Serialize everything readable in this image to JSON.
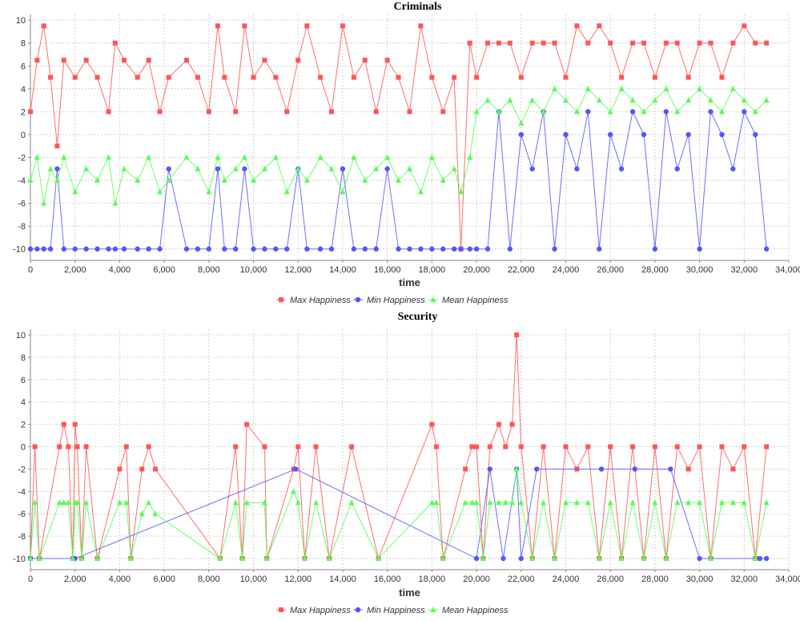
{
  "chart_data": [
    {
      "type": "line",
      "title": "Criminals",
      "xlabel": "time",
      "ylabel": "",
      "xlim": [
        0,
        34000
      ],
      "ylim": [
        -11,
        10.5
      ],
      "x_ticks": [
        "0",
        "2,000",
        "4,000",
        "6,000",
        "8,000",
        "10,000",
        "12,000",
        "14,000",
        "16,000",
        "18,000",
        "20,000",
        "22,000",
        "24,000",
        "26,000",
        "28,000",
        "30,000",
        "32,000",
        "34,000"
      ],
      "y_ticks": [
        "10",
        "8",
        "6",
        "4",
        "2",
        "0",
        "-2",
        "-4",
        "-6",
        "-8",
        "-10"
      ],
      "x_tick_values": [
        0,
        2000,
        4000,
        6000,
        8000,
        10000,
        12000,
        14000,
        16000,
        18000,
        20000,
        22000,
        24000,
        26000,
        28000,
        30000,
        32000,
        34000
      ],
      "y_tick_values": [
        10,
        8,
        6,
        4,
        2,
        0,
        -2,
        -4,
        -6,
        -8,
        -10
      ],
      "grid": true,
      "legend_position": "bottom-center",
      "series": [
        {
          "name": "Max Happiness",
          "color": "#ff5555",
          "marker": "square",
          "x": [
            0,
            300,
            600,
            900,
            1200,
            1500,
            2000,
            2500,
            3000,
            3500,
            3800,
            4200,
            4800,
            5300,
            5800,
            6200,
            7000,
            7500,
            8000,
            8400,
            8700,
            9200,
            9600,
            10000,
            10500,
            11000,
            11500,
            12000,
            12400,
            13000,
            13500,
            14000,
            14500,
            15000,
            15500,
            16000,
            16500,
            17000,
            17500,
            18000,
            18500,
            19000,
            19300,
            19700,
            20000,
            20500,
            21000,
            21500,
            22000,
            22500,
            23000,
            23500,
            24000,
            24500,
            25000,
            25500,
            26000,
            26500,
            27000,
            27500,
            28000,
            28500,
            29000,
            29500,
            30000,
            30500,
            31000,
            31500,
            32000,
            32500,
            33000
          ],
          "y": [
            2,
            6.5,
            9.5,
            5,
            -1,
            6.5,
            5,
            6.5,
            5,
            2,
            8,
            6.5,
            5,
            6.5,
            2,
            5,
            6.5,
            5,
            2,
            9.5,
            5,
            2,
            9.5,
            5,
            6.5,
            5,
            2,
            6.5,
            9.5,
            5,
            2,
            9.5,
            5,
            6.5,
            2,
            6.5,
            5,
            2,
            9.5,
            5,
            2,
            5,
            -10,
            8,
            5,
            8,
            8,
            8,
            5,
            8,
            8,
            8,
            5,
            9.5,
            8,
            9.5,
            8,
            5,
            8,
            8,
            5,
            8,
            8,
            5,
            8,
            8,
            5,
            8,
            9.5,
            8,
            8
          ]
        },
        {
          "name": "Min Happiness",
          "color": "#5555ff",
          "marker": "circle",
          "x": [
            0,
            300,
            600,
            900,
            1200,
            1500,
            2000,
            2500,
            3000,
            3500,
            3800,
            4200,
            4800,
            5300,
            5800,
            6200,
            7000,
            7500,
            8000,
            8400,
            8700,
            9200,
            9600,
            10000,
            10500,
            11000,
            11500,
            12000,
            12400,
            13000,
            13500,
            14000,
            14500,
            15000,
            15500,
            16000,
            16500,
            17000,
            17500,
            18000,
            18500,
            19000,
            19300,
            19700,
            20000,
            20500,
            21000,
            21500,
            22000,
            22500,
            23000,
            23500,
            24000,
            24500,
            25000,
            25500,
            26000,
            26500,
            27000,
            27500,
            28000,
            28500,
            29000,
            29500,
            30000,
            30500,
            31000,
            31500,
            32000,
            32500,
            33000
          ],
          "y": [
            -10,
            -10,
            -10,
            -10,
            -3,
            -10,
            -10,
            -10,
            -10,
            -10,
            -10,
            -10,
            -10,
            -10,
            -10,
            -3,
            -10,
            -10,
            -10,
            -3,
            -10,
            -10,
            -3,
            -10,
            -10,
            -10,
            -10,
            -3,
            -10,
            -10,
            -10,
            -3,
            -10,
            -10,
            -10,
            -3,
            -10,
            -10,
            -10,
            -10,
            -10,
            -10,
            -10,
            -10,
            -10,
            -10,
            2,
            -10,
            0,
            -3,
            2,
            -10,
            0,
            -3,
            2,
            -10,
            0,
            -3,
            2,
            0,
            -10,
            2,
            -3,
            0,
            -10,
            2,
            0,
            -3,
            2,
            0,
            -10
          ]
        },
        {
          "name": "Mean Happiness",
          "color": "#55ff55",
          "marker": "triangle",
          "x": [
            0,
            300,
            600,
            900,
            1200,
            1500,
            2000,
            2500,
            3000,
            3500,
            3800,
            4200,
            4800,
            5300,
            5800,
            6200,
            7000,
            7500,
            8000,
            8400,
            8700,
            9200,
            9600,
            10000,
            10500,
            11000,
            11500,
            12000,
            12400,
            13000,
            13500,
            14000,
            14500,
            15000,
            15500,
            16000,
            16500,
            17000,
            17500,
            18000,
            18500,
            19000,
            19300,
            19700,
            20000,
            20500,
            21000,
            21500,
            22000,
            22500,
            23000,
            23500,
            24000,
            24500,
            25000,
            25500,
            26000,
            26500,
            27000,
            27500,
            28000,
            28500,
            29000,
            29500,
            30000,
            30500,
            31000,
            31500,
            32000,
            32500,
            33000
          ],
          "y": [
            -4,
            -2,
            -6,
            -3,
            -4,
            -2,
            -5,
            -3,
            -4,
            -2,
            -6,
            -3,
            -4,
            -2,
            -5,
            -4,
            -2,
            -3,
            -5,
            -2,
            -4,
            -3,
            -2,
            -4,
            -3,
            -2,
            -5,
            -3,
            -4,
            -2,
            -3,
            -5,
            -2,
            -4,
            -3,
            -2,
            -4,
            -3,
            -5,
            -2,
            -4,
            -3,
            -5,
            -2,
            2,
            3,
            2,
            3,
            1,
            3,
            2,
            4,
            3,
            2,
            4,
            3,
            2,
            4,
            3,
            2,
            3,
            4,
            2,
            3,
            4,
            3,
            2,
            4,
            3,
            2,
            3
          ]
        }
      ]
    },
    {
      "type": "line",
      "title": "Security",
      "xlabel": "time",
      "ylabel": "",
      "xlim": [
        0,
        34000
      ],
      "ylim": [
        -11,
        10.5
      ],
      "x_ticks": [
        "0",
        "2,000",
        "4,000",
        "6,000",
        "8,000",
        "10,000",
        "12,000",
        "14,000",
        "16,000",
        "18,000",
        "20,000",
        "22,000",
        "24,000",
        "26,000",
        "28,000",
        "30,000",
        "32,000",
        "34,000"
      ],
      "y_ticks": [
        "10",
        "8",
        "6",
        "4",
        "2",
        "0",
        "-2",
        "-4",
        "-6",
        "-8",
        "-10"
      ],
      "x_tick_values": [
        0,
        2000,
        4000,
        6000,
        8000,
        10000,
        12000,
        14000,
        16000,
        18000,
        20000,
        22000,
        24000,
        26000,
        28000,
        30000,
        32000,
        34000
      ],
      "y_tick_values": [
        10,
        8,
        6,
        4,
        2,
        0,
        -2,
        -4,
        -6,
        -8,
        -10
      ],
      "grid": true,
      "legend_position": "bottom-center",
      "series": [
        {
          "name": "Max Happiness",
          "color": "#ff5555",
          "marker": "square",
          "x": [
            0,
            200,
            400,
            1300,
            1500,
            1700,
            1900,
            2000,
            2100,
            2300,
            2500,
            3000,
            4000,
            4300,
            4500,
            5000,
            5300,
            5600,
            8500,
            9200,
            9500,
            9700,
            10500,
            10600,
            11800,
            12000,
            12300,
            12800,
            13400,
            14400,
            15600,
            18000,
            18200,
            18500,
            19500,
            19800,
            20000,
            20300,
            20600,
            21000,
            21300,
            21600,
            21800,
            22000,
            22500,
            23000,
            23500,
            24000,
            24500,
            25000,
            25500,
            26000,
            26500,
            27000,
            27500,
            28000,
            28500,
            29000,
            29500,
            30000,
            30500,
            31000,
            31500,
            32000,
            32500,
            33000
          ],
          "y": [
            -10,
            0,
            -10,
            0,
            2,
            0,
            -10,
            2,
            0,
            -10,
            0,
            -10,
            -2,
            0,
            -10,
            -2,
            0,
            -2,
            -10,
            0,
            -10,
            2,
            0,
            -10,
            -2,
            0,
            -10,
            0,
            -10,
            0,
            -10,
            2,
            0,
            -10,
            -2,
            0,
            0,
            -10,
            0,
            2,
            0,
            2,
            10,
            0,
            -10,
            0,
            -10,
            0,
            -2,
            0,
            -10,
            0,
            -10,
            0,
            -10,
            0,
            -10,
            0,
            -2,
            0,
            -10,
            0,
            -2,
            0,
            -10,
            0
          ]
        },
        {
          "name": "Min Happiness",
          "color": "#5555ff",
          "marker": "circle",
          "x": [
            0,
            2000,
            11900,
            20000,
            20600,
            21200,
            21800,
            22000,
            22700,
            25600,
            27100,
            28700,
            30000,
            32700,
            33000
          ],
          "y": [
            -10,
            -10,
            -2,
            -10,
            -2,
            -10,
            -2,
            -10,
            -2,
            -2,
            -2,
            -2,
            -10,
            -10,
            -10
          ]
        },
        {
          "name": "Mean Happiness",
          "color": "#55ff55",
          "marker": "triangle",
          "x": [
            0,
            200,
            400,
            1300,
            1500,
            1700,
            1900,
            2000,
            2100,
            2300,
            2500,
            3000,
            4000,
            4300,
            4500,
            5000,
            5300,
            5600,
            8500,
            9200,
            9500,
            9700,
            10500,
            10600,
            11800,
            12000,
            12300,
            12800,
            13400,
            14400,
            15600,
            18000,
            18200,
            18500,
            19500,
            19800,
            20000,
            20300,
            20600,
            21000,
            21300,
            21600,
            21800,
            22000,
            22500,
            23000,
            23500,
            24000,
            24500,
            25000,
            25500,
            26000,
            26500,
            27000,
            27500,
            28000,
            28500,
            29000,
            29500,
            30000,
            30500,
            31000,
            31500,
            32000,
            32500,
            33000
          ],
          "y": [
            -10,
            -5,
            -10,
            -5,
            -5,
            -5,
            -10,
            -5,
            -5,
            -10,
            -5,
            -10,
            -5,
            -5,
            -10,
            -6,
            -5,
            -6,
            -10,
            -5,
            -10,
            -5,
            -5,
            -10,
            -4,
            -5,
            -10,
            -5,
            -10,
            -5,
            -10,
            -5,
            -5,
            -10,
            -5,
            -5,
            -5,
            -10,
            -5,
            -5,
            -5,
            -5,
            -2,
            -5,
            -10,
            -5,
            -10,
            -5,
            -5,
            -5,
            -10,
            -5,
            -10,
            -5,
            -10,
            -5,
            -10,
            -5,
            -5,
            -5,
            -10,
            -5,
            -5,
            -5,
            -10,
            -5
          ]
        }
      ]
    }
  ]
}
